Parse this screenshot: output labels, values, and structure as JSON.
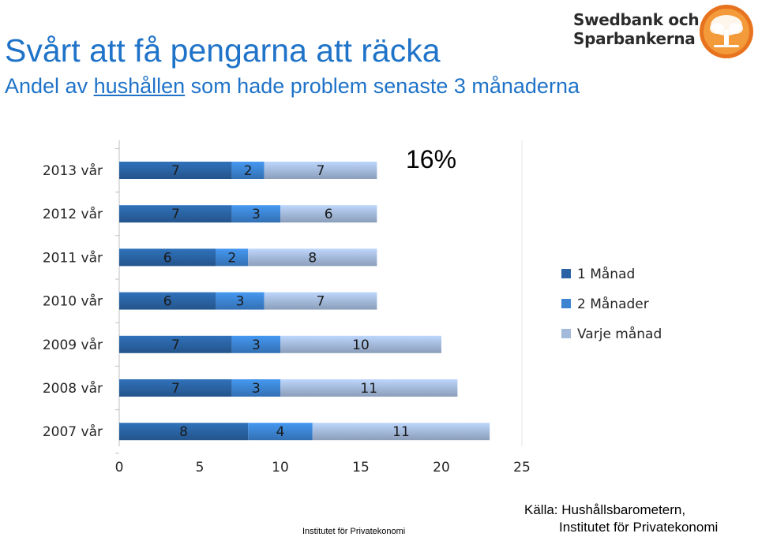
{
  "header": {
    "title": "Svårt att få pengarna att räcka",
    "subtitle_pre": "Andel av ",
    "subtitle_underlined": "hushållen",
    "subtitle_post": " som hade problem senaste 3 månaderna"
  },
  "logo": {
    "line1": "Swedbank och",
    "line2": "Sparbankerna",
    "colors": {
      "badge": "#e8731e",
      "badge_inner": "#f39a3a",
      "tree": "#ffffff"
    }
  },
  "highlight": "16%",
  "chart_data": {
    "type": "bar",
    "orientation": "horizontal",
    "stacked": true,
    "categories": [
      "2013 vår",
      "2012 vår",
      "2011 vår",
      "2010 vår",
      "2009 vår",
      "2008 vår",
      "2007 vår"
    ],
    "series": [
      {
        "name": "1 Månad",
        "values": [
          7,
          7,
          6,
          6,
          7,
          7,
          8
        ],
        "color": "#2a63a3"
      },
      {
        "name": "2 Månader",
        "values": [
          2,
          3,
          2,
          3,
          3,
          3,
          4
        ],
        "color": "#3c84d2"
      },
      {
        "name": "Varje  månad",
        "values": [
          7,
          6,
          8,
          7,
          10,
          11,
          11
        ],
        "color": "#a4badb"
      }
    ],
    "xlim": [
      0,
      25
    ],
    "xticks": [
      "0",
      "5",
      "10",
      "15",
      "20",
      "25"
    ],
    "legend_position": "right",
    "grid": false
  },
  "source": {
    "line1": "Källa: Hushållsbarometern,",
    "line2": "Institutet för Privatekonomi"
  },
  "footer": "Institutet för Privatekonomi"
}
